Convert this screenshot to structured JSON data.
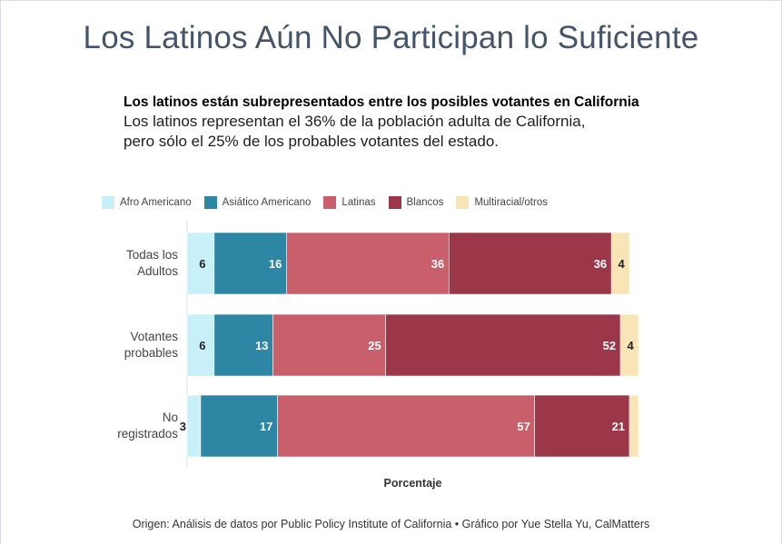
{
  "title": "Los Latinos Aún No Participan lo Suficiente",
  "subtitle_bold": "Los latinos están subrepresentados entre los posibles votantes en California",
  "subtitle_lines": [
    "Los latinos representan el 36% de la población adulta de California,",
    "pero sólo el 25% de los probables votantes del estado."
  ],
  "caption": "Origen: Análisis de datos por Public Policy Institute of California • Gráfico por Yue Stella Yu, CalMatters",
  "chart_data": {
    "type": "bar",
    "orientation": "horizontal",
    "stacked": true,
    "categories": [
      [
        "Todas los",
        "Adultos"
      ],
      [
        "Votantes",
        "probables"
      ],
      [
        "No",
        "registrados"
      ]
    ],
    "series": [
      {
        "name": "Afro Americano",
        "color": "#c8f0f8",
        "values": [
          6,
          6,
          3
        ]
      },
      {
        "name": "Asiático Americano",
        "color": "#2d86a3",
        "values": [
          16,
          13,
          17
        ]
      },
      {
        "name": "Latinas",
        "color": "#c95f6b",
        "values": [
          36,
          25,
          57
        ]
      },
      {
        "name": "Blancos",
        "color": "#9b3748",
        "values": [
          36,
          52,
          21
        ]
      },
      {
        "name": "Multiracial/otros",
        "color": "#f8e5b5",
        "values": [
          4,
          4,
          2
        ]
      }
    ],
    "data_labels": [
      [
        "6",
        "16",
        "36",
        "36",
        "4"
      ],
      [
        "6",
        "13",
        "25",
        "52",
        "4"
      ],
      [
        "3",
        "17",
        "57",
        "21",
        ""
      ]
    ],
    "xlabel": "Porcentaje",
    "ylabel": "",
    "xlim": [
      0,
      100
    ],
    "legend_position": "top",
    "grid": false
  }
}
